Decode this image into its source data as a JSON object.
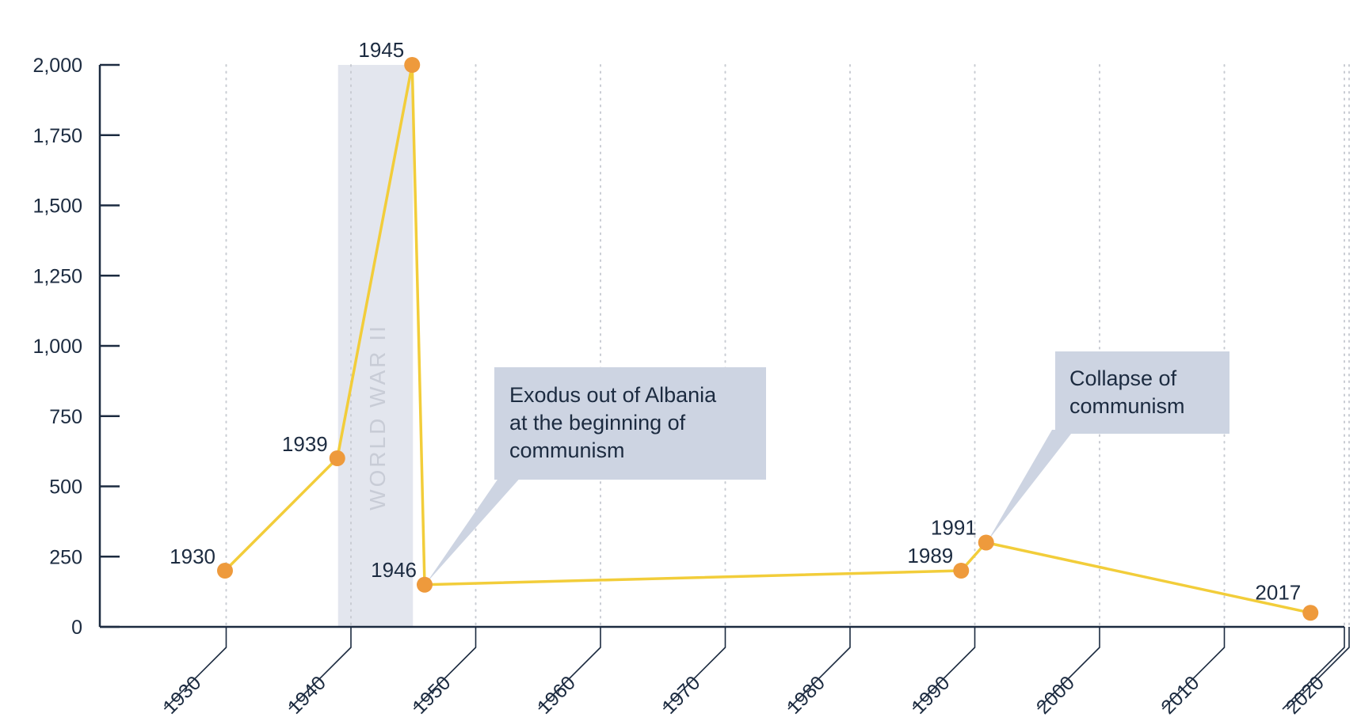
{
  "chart_data": {
    "type": "line",
    "title": "",
    "xlabel": "",
    "ylabel": "",
    "xlim": [
      1920,
      2025
    ],
    "ylim": [
      0,
      2000
    ],
    "y_ticks": [
      0,
      250,
      500,
      750,
      1000,
      1250,
      1500,
      1750,
      2000
    ],
    "y_tick_labels": [
      "0",
      "250",
      "500",
      "750",
      "1,000",
      "1,250",
      "1,500",
      "1,750",
      "2,000"
    ],
    "x_ticks": [
      1930,
      1940,
      1950,
      1960,
      1970,
      1980,
      1990,
      2000,
      2010,
      2020
    ],
    "x_tick_labels": [
      "1930",
      "1940",
      "1950",
      "1960",
      "1970",
      "1980",
      "1990",
      "2000",
      "2010",
      "2020"
    ],
    "grid": "vertical dotted",
    "series": [
      {
        "x": [
          1930,
          1939,
          1945,
          1946,
          1989,
          1991,
          2017
        ],
        "values": [
          200,
          600,
          2000,
          150,
          200,
          300,
          50
        ],
        "point_labels": [
          "1930",
          "1939",
          "1945",
          "1946",
          "1989",
          "1991",
          "2017"
        ]
      }
    ],
    "shaded_band": {
      "x_start": 1939,
      "x_end": 1945,
      "label": "WORLD WAR II"
    },
    "annotations": [
      {
        "x": 1946,
        "y": 150,
        "lines": [
          "Exodus out of Albania",
          "at the beginning of",
          "communism"
        ]
      },
      {
        "x": 1991,
        "y": 300,
        "lines": [
          "Collapse of",
          "communism"
        ]
      }
    ],
    "colors": {
      "line": "#f2cd3a",
      "marker": "#ee9a3c",
      "axis": "#1c2b40",
      "grid": "#c9ccd3",
      "band": "#e3e6ee",
      "callout": "#cdd4e2"
    }
  }
}
